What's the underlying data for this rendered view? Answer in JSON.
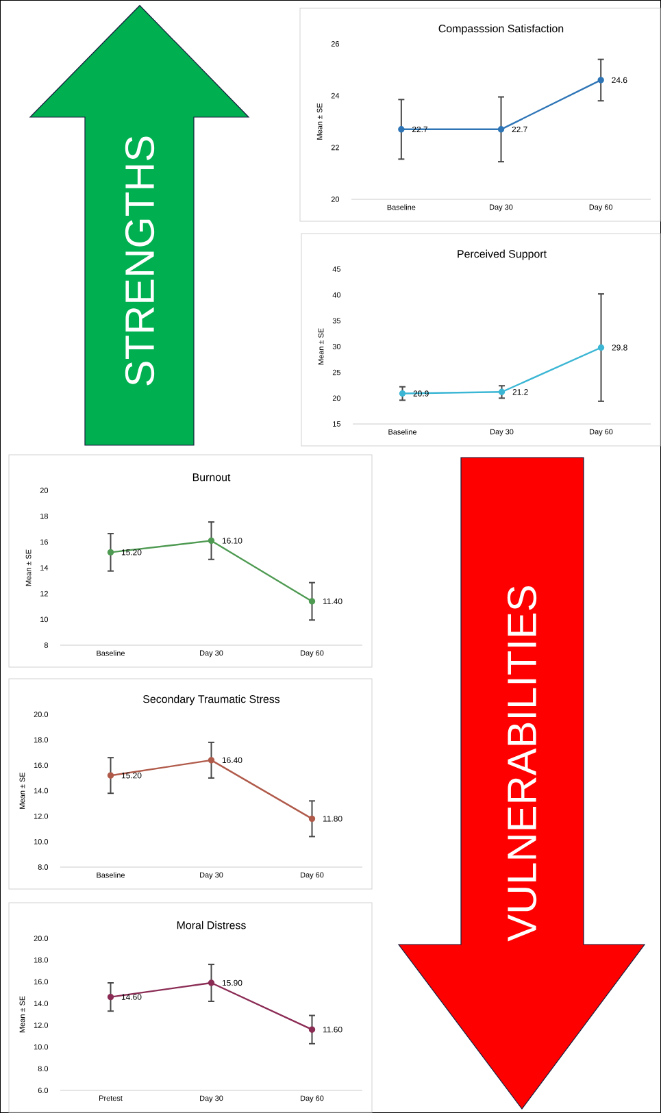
{
  "chart_data": [
    {
      "type": "line",
      "title": "Compasssion Satisfaction",
      "ylabel": "Mean ± SE",
      "categories": [
        "Baseline",
        "Day 30",
        "Day 60"
      ],
      "series": [
        {
          "color": "#2e75b6",
          "values": [
            22.7,
            22.7,
            24.6
          ],
          "errors": [
            1.15,
            1.25,
            0.8
          ]
        }
      ],
      "ylim": [
        20,
        26
      ],
      "yticks": [
        20,
        22,
        24,
        26
      ],
      "data_labels": true,
      "marker": "circle",
      "line_style": "solid"
    },
    {
      "type": "line",
      "title": "Perceived Support",
      "ylabel": "Mean ± SE",
      "categories": [
        "Baseline",
        "Day 30",
        "Day 60"
      ],
      "series": [
        {
          "color": "#3bb6d4",
          "values": [
            20.9,
            21.2,
            29.8
          ],
          "errors": [
            1.3,
            1.2,
            10.4
          ]
        }
      ],
      "ylim": [
        15,
        45
      ],
      "yticks": [
        15,
        20,
        25,
        30,
        35,
        40,
        45
      ],
      "data_labels": true,
      "marker": "circle",
      "line_style": "solid"
    },
    {
      "type": "line",
      "title": "Burnout",
      "ylabel": "Mean ± SE",
      "categories": [
        "Baseline",
        "Day 30",
        "Day 60"
      ],
      "series": [
        {
          "color": "#4e9a52",
          "values": [
            15.2,
            16.1,
            11.4
          ],
          "errors": [
            1.45,
            1.45,
            1.45
          ],
          "value_labels": [
            "15.20",
            "16.10",
            "11.40"
          ]
        }
      ],
      "ylim": [
        8,
        20
      ],
      "yticks": [
        8,
        10,
        12,
        14,
        16,
        18,
        20
      ],
      "marker": "circle",
      "line_style": "solid"
    },
    {
      "type": "line",
      "title": "Secondary Traumatic Stress",
      "ylabel": "Mean ± SE",
      "categories": [
        "Baseline",
        "Day 30",
        "Day 60"
      ],
      "series": [
        {
          "color": "#b05a4a",
          "values": [
            15.2,
            16.4,
            11.8
          ],
          "errors": [
            1.4,
            1.4,
            1.4
          ],
          "value_labels": [
            "15.20",
            "16.40",
            "11.80"
          ]
        }
      ],
      "ylim": [
        8,
        20
      ],
      "yticks": [
        {
          "value": 8,
          "label": "8.0"
        },
        {
          "value": 10,
          "label": "10.0"
        },
        {
          "value": 12,
          "label": "12.0"
        },
        {
          "value": 14,
          "label": "14.0"
        },
        {
          "value": 16,
          "label": "16.0"
        },
        {
          "value": 18,
          "label": "18.0"
        },
        {
          "value": 20,
          "label": "20.0"
        }
      ],
      "marker": "circle",
      "line_style": "solid"
    },
    {
      "type": "line",
      "title": "Moral Distress",
      "ylabel": "Mean ± SE",
      "categories": [
        "Pretest",
        "Day 30",
        "Day 60"
      ],
      "series": [
        {
          "color": "#8b2c55",
          "values": [
            14.6,
            15.9,
            11.6
          ],
          "errors": [
            1.3,
            1.7,
            1.3
          ],
          "value_labels": [
            "14.60",
            "15.90",
            "11.60"
          ]
        }
      ],
      "ylim": [
        6,
        20
      ],
      "yticks": [
        {
          "value": 6,
          "label": "6.0"
        },
        {
          "value": 8,
          "label": "8.0"
        },
        {
          "value": 10,
          "label": "10.0"
        },
        {
          "value": 12,
          "label": "12.0"
        },
        {
          "value": 14,
          "label": "14.0"
        },
        {
          "value": 16,
          "label": "16.0"
        },
        {
          "value": 18,
          "label": "18.0"
        },
        {
          "value": 20,
          "label": "20.0"
        }
      ],
      "marker": "circle",
      "line_style": "solid"
    },
    {
      "type": "other",
      "annotations": [
        "STRENGTHS",
        "VULNERABILITIES"
      ]
    }
  ]
}
